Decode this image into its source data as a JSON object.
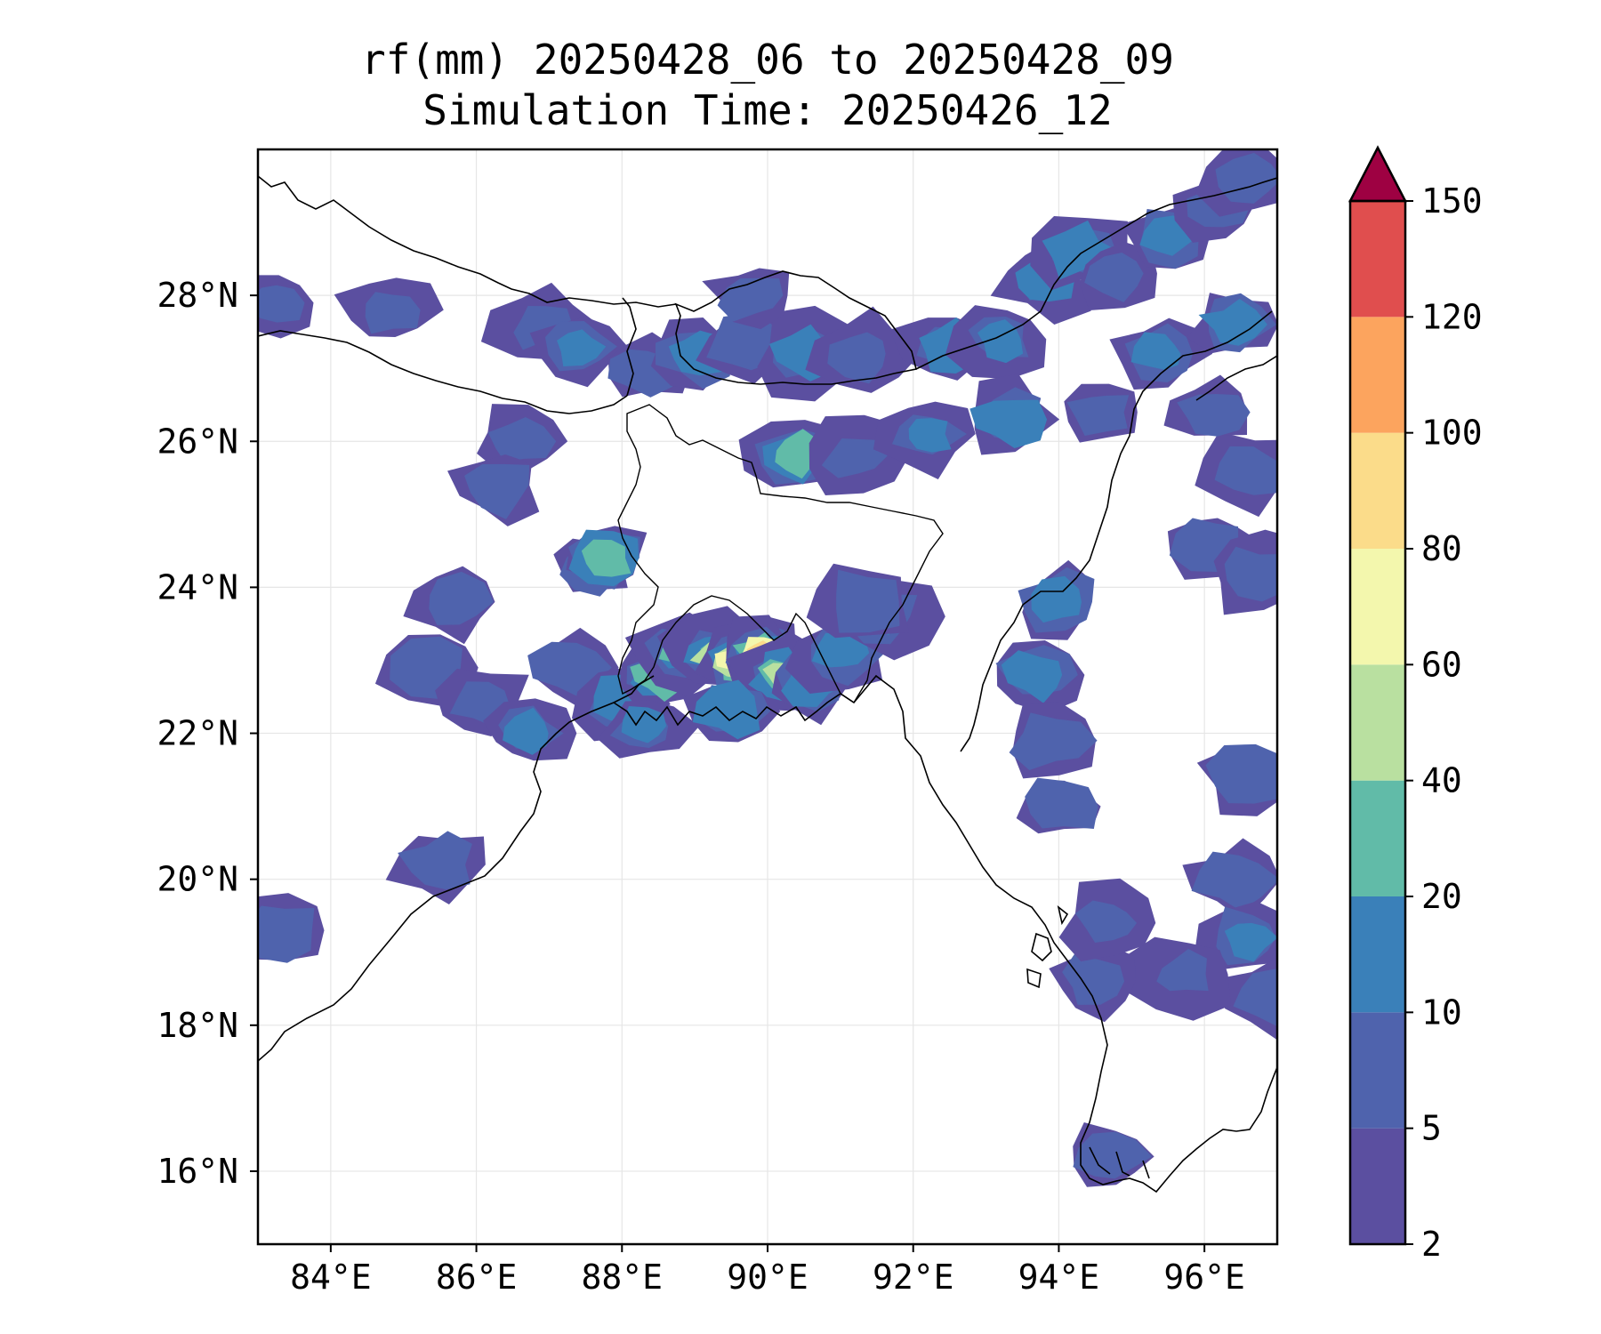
{
  "title_line1": "rf(mm) 20250428_06 to 20250428_09",
  "title_line2": "Simulation Time: 20250426_12",
  "map": {
    "lon_range": [
      83,
      97
    ],
    "lat_range": [
      15,
      30
    ],
    "lon_ticks": [
      {
        "value": 84,
        "label": "84°E"
      },
      {
        "value": 86,
        "label": "86°E"
      },
      {
        "value": 88,
        "label": "88°E"
      },
      {
        "value": 90,
        "label": "90°E"
      },
      {
        "value": 92,
        "label": "92°E"
      },
      {
        "value": 94,
        "label": "94°E"
      },
      {
        "value": 96,
        "label": "96°E"
      }
    ],
    "lat_ticks": [
      {
        "value": 16,
        "label": "16°N"
      },
      {
        "value": 18,
        "label": "18°N"
      },
      {
        "value": 20,
        "label": "20°N"
      },
      {
        "value": 22,
        "label": "22°N"
      },
      {
        "value": 24,
        "label": "24°N"
      },
      {
        "value": 26,
        "label": "26°N"
      },
      {
        "value": 28,
        "label": "28°N"
      }
    ],
    "grid": true,
    "rain_cells": [
      {
        "lon": 86.6,
        "lat": 26.0,
        "level": 1
      },
      {
        "lon": 86.3,
        "lat": 25.4,
        "level": 1
      },
      {
        "lon": 85.7,
        "lat": 23.8,
        "level": 1
      },
      {
        "lon": 85.4,
        "lat": 22.9,
        "level": 1
      },
      {
        "lon": 86.1,
        "lat": 22.4,
        "level": 1
      },
      {
        "lon": 86.7,
        "lat": 22.0,
        "level": 2
      },
      {
        "lon": 87.6,
        "lat": 24.3,
        "level": 1
      },
      {
        "lon": 87.8,
        "lat": 24.4,
        "level": 3
      },
      {
        "lon": 86.9,
        "lat": 27.6,
        "level": 1
      },
      {
        "lon": 87.4,
        "lat": 27.3,
        "level": 2
      },
      {
        "lon": 88.3,
        "lat": 27.0,
        "level": 1
      },
      {
        "lon": 87.3,
        "lat": 22.9,
        "level": 1
      },
      {
        "lon": 88.0,
        "lat": 22.4,
        "level": 2
      },
      {
        "lon": 88.5,
        "lat": 22.8,
        "level": 3
      },
      {
        "lon": 88.3,
        "lat": 22.1,
        "level": 2
      },
      {
        "lon": 88.8,
        "lat": 23.1,
        "level": 3
      },
      {
        "lon": 89.3,
        "lat": 23.1,
        "level": 4
      },
      {
        "lon": 89.6,
        "lat": 23.0,
        "level": 5
      },
      {
        "lon": 89.9,
        "lat": 23.2,
        "level": 6
      },
      {
        "lon": 89.9,
        "lat": 23.1,
        "level": 7
      },
      {
        "lon": 90.2,
        "lat": 22.8,
        "level": 4
      },
      {
        "lon": 89.5,
        "lat": 22.3,
        "level": 2
      },
      {
        "lon": 90.6,
        "lat": 22.7,
        "level": 2
      },
      {
        "lon": 91.0,
        "lat": 23.1,
        "level": 2
      },
      {
        "lon": 91.6,
        "lat": 23.6,
        "level": 2
      },
      {
        "lon": 91.3,
        "lat": 23.8,
        "level": 1
      },
      {
        "lon": 89.0,
        "lat": 27.2,
        "level": 2
      },
      {
        "lon": 89.7,
        "lat": 27.3,
        "level": 1
      },
      {
        "lon": 90.5,
        "lat": 27.2,
        "level": 2
      },
      {
        "lon": 91.3,
        "lat": 27.2,
        "level": 1
      },
      {
        "lon": 92.5,
        "lat": 27.3,
        "level": 2
      },
      {
        "lon": 93.2,
        "lat": 27.4,
        "level": 2
      },
      {
        "lon": 90.4,
        "lat": 25.8,
        "level": 3
      },
      {
        "lon": 91.2,
        "lat": 25.8,
        "level": 1
      },
      {
        "lon": 92.2,
        "lat": 26.1,
        "level": 2
      },
      {
        "lon": 93.3,
        "lat": 26.3,
        "level": 2
      },
      {
        "lon": 93.8,
        "lat": 28.2,
        "level": 2
      },
      {
        "lon": 94.3,
        "lat": 28.6,
        "level": 2
      },
      {
        "lon": 94.8,
        "lat": 28.3,
        "level": 1
      },
      {
        "lon": 95.5,
        "lat": 28.8,
        "level": 2
      },
      {
        "lon": 96.2,
        "lat": 29.2,
        "level": 1
      },
      {
        "lon": 96.6,
        "lat": 29.6,
        "level": 1
      },
      {
        "lon": 95.4,
        "lat": 27.2,
        "level": 2
      },
      {
        "lon": 96.4,
        "lat": 27.6,
        "level": 2
      },
      {
        "lon": 94.6,
        "lat": 26.4,
        "level": 1
      },
      {
        "lon": 94.0,
        "lat": 23.8,
        "level": 2
      },
      {
        "lon": 93.7,
        "lat": 22.8,
        "level": 2
      },
      {
        "lon": 93.9,
        "lat": 21.9,
        "level": 1
      },
      {
        "lon": 94.0,
        "lat": 21.0,
        "level": 1
      },
      {
        "lon": 96.1,
        "lat": 24.6,
        "level": 1
      },
      {
        "lon": 96.7,
        "lat": 24.2,
        "level": 1
      },
      {
        "lon": 96.6,
        "lat": 25.6,
        "level": 1
      },
      {
        "lon": 96.4,
        "lat": 20.0,
        "level": 1
      },
      {
        "lon": 96.6,
        "lat": 19.2,
        "level": 2
      },
      {
        "lon": 96.9,
        "lat": 18.4,
        "level": 1
      },
      {
        "lon": 95.7,
        "lat": 18.7,
        "level": 1
      },
      {
        "lon": 94.5,
        "lat": 18.6,
        "level": 1
      },
      {
        "lon": 94.7,
        "lat": 19.4,
        "level": 1
      },
      {
        "lon": 94.7,
        "lat": 16.2,
        "level": 1
      },
      {
        "lon": 83.3,
        "lat": 19.3,
        "level": 1
      },
      {
        "lon": 83.2,
        "lat": 27.9,
        "level": 1
      },
      {
        "lon": 84.8,
        "lat": 27.8,
        "level": 1
      },
      {
        "lon": 85.5,
        "lat": 20.2,
        "level": 1
      },
      {
        "lon": 89.8,
        "lat": 28.0,
        "level": 1
      },
      {
        "lon": 96.6,
        "lat": 21.4,
        "level": 1
      },
      {
        "lon": 96.1,
        "lat": 26.4,
        "level": 1
      }
    ]
  },
  "colorbar": {
    "levels": [
      "2",
      "5",
      "10",
      "20",
      "40",
      "60",
      "80",
      "100",
      "120",
      "150"
    ],
    "colors": [
      "#5b4fa0",
      "#4f63ad",
      "#3a80b9",
      "#61bba8",
      "#b9e0a0",
      "#f3f7ad",
      "#fbdc8a",
      "#fca45e",
      "#e04e4e",
      "#d33c4d"
    ],
    "extend_color": "#9e0142"
  }
}
